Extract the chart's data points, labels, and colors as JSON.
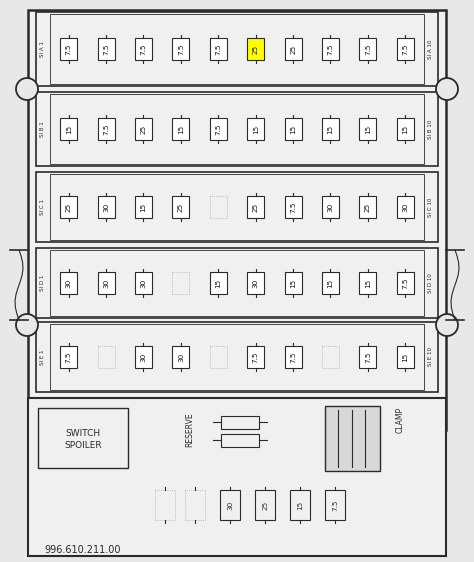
{
  "bg_color": "#e8e8e8",
  "fuse_fill_normal": "#ffffff",
  "fuse_fill_yellow": "#ffff00",
  "text_color": "#111111",
  "title_text": "996.610.211.00",
  "rows": [
    {
      "label_left": "SI A 1",
      "label_right": "SI A 10",
      "fuses": [
        "7.5",
        "7.5",
        "7.5",
        "7.5",
        "7.5",
        "25",
        "25",
        "7.5",
        "7.5",
        "7.5"
      ],
      "yellow_index": 5
    },
    {
      "label_left": "SI B 1",
      "label_right": "SI B 10",
      "fuses": [
        "15",
        "7.5",
        "25",
        "15",
        "7.5",
        "15",
        "15",
        "15",
        "15",
        "15"
      ],
      "yellow_index": -1
    },
    {
      "label_left": "SI C 1",
      "label_right": "SI C 10",
      "fuses": [
        "25",
        "30",
        "15",
        "25",
        "",
        "25",
        "7.5",
        "30",
        "25",
        "30"
      ],
      "yellow_index": -1
    },
    {
      "label_left": "SI D 1",
      "label_right": "SI D 10",
      "fuses": [
        "30",
        "30",
        "30",
        "",
        "15",
        "30",
        "15",
        "15",
        "15",
        "7.5"
      ],
      "yellow_index": -1
    },
    {
      "label_left": "SI E 1",
      "label_right": "SI E 10",
      "fuses": [
        "7.5",
        "",
        "30",
        "30",
        "",
        "7.5",
        "7.5",
        "",
        "7.5",
        "15"
      ],
      "yellow_index": -1
    }
  ],
  "bottom_fuses": [
    "",
    "",
    "30",
    "25",
    "15",
    "7.5"
  ],
  "reserve_label": "RESERVE",
  "clamp_label": "CLAMP",
  "switch_label_line1": "SWITCH",
  "switch_label_line2": "SPOILER"
}
